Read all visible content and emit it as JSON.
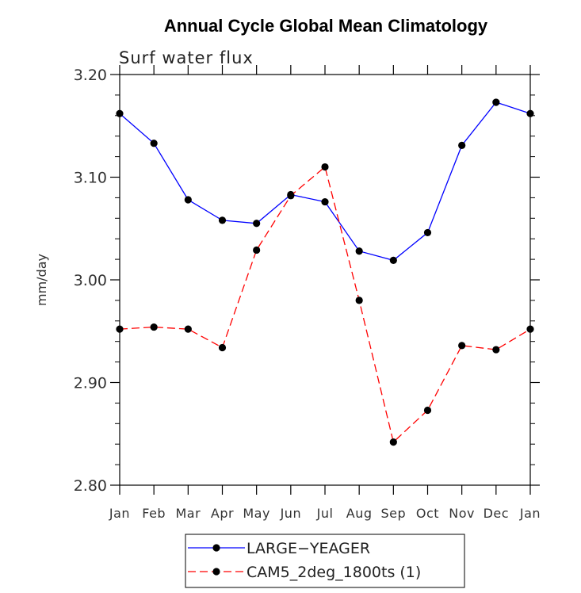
{
  "chart_data": {
    "type": "line",
    "title": "Annual Cycle Global Mean Climatology",
    "subtitle": "Surf water flux",
    "xlabel": "",
    "ylabel": "mm/day",
    "categories": [
      "Jan",
      "Feb",
      "Mar",
      "Apr",
      "May",
      "Jun",
      "Jul",
      "Aug",
      "Sep",
      "Oct",
      "Nov",
      "Dec",
      "Jan"
    ],
    "ylim": [
      2.8,
      3.2
    ],
    "yticks": [
      2.8,
      2.9,
      3.0,
      3.1,
      3.2
    ],
    "ytick_labels": [
      "2.80",
      "2.90",
      "3.00",
      "3.10",
      "3.20"
    ],
    "series": [
      {
        "name": "LARGE−YEAGER",
        "color": "#0000ff",
        "dash": "solid",
        "values": [
          3.162,
          3.133,
          3.078,
          3.058,
          3.055,
          3.083,
          3.076,
          3.028,
          3.019,
          3.046,
          3.131,
          3.173,
          3.162
        ]
      },
      {
        "name": "CAM5_2deg_1800ts (1)",
        "color": "#ff0000",
        "dash": "dashed",
        "values": [
          2.952,
          2.954,
          2.952,
          2.934,
          3.029,
          3.082,
          3.11,
          2.98,
          2.842,
          2.873,
          2.936,
          2.932,
          2.952
        ]
      }
    ],
    "legend": "bottom-center"
  }
}
